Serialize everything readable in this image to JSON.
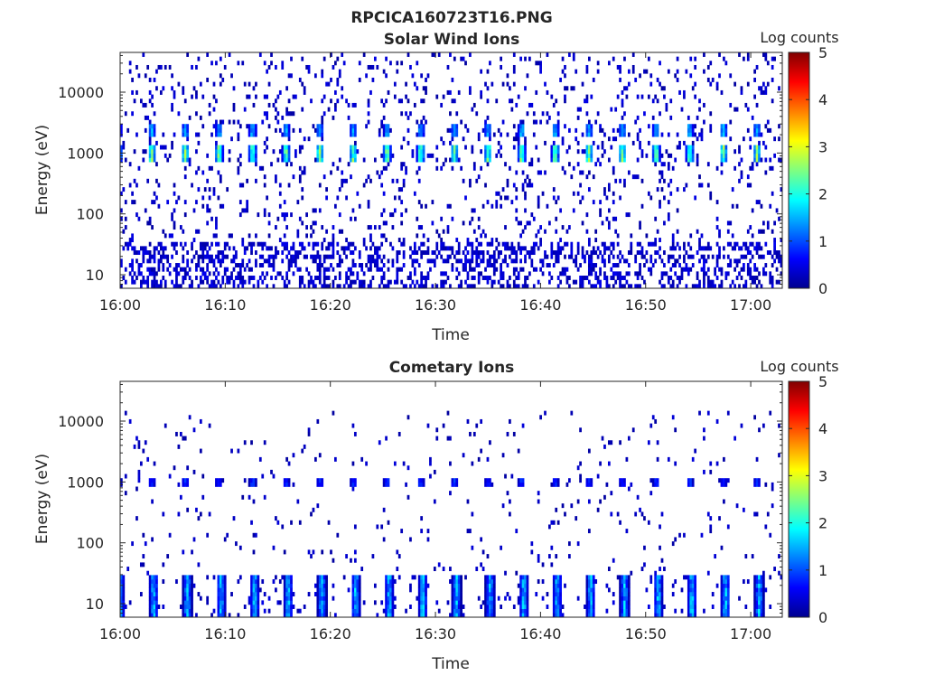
{
  "figure_title": "RPCICA160723T16.PNG",
  "chart_data": [
    {
      "type": "heatmap",
      "title": "Solar Wind Ions",
      "xlabel": "Time",
      "ylabel": "Energy (eV)",
      "xticks": [
        "16:00",
        "16:10",
        "16:20",
        "16:30",
        "16:40",
        "16:50",
        "17:00"
      ],
      "xlim": [
        "16:00",
        "17:03"
      ],
      "yscale": "log",
      "yticks": [
        10,
        100,
        1000,
        10000
      ],
      "ylim": [
        6,
        45000
      ],
      "colorbar": {
        "label": "Log counts",
        "ticks": [
          0,
          1,
          2,
          3,
          4,
          5
        ],
        "range": [
          0,
          5
        ],
        "colormap": "jet"
      },
      "features": {
        "main_beam": {
          "energy_eV": 1000,
          "peak_log_counts": 2.6,
          "cycle_minutes": 3.2,
          "first_minute": 3
        },
        "upper_harmonic": {
          "energy_eV": 2200,
          "peak_log_counts": 1.6
        },
        "background": {
          "energy_range_eV": [
            6,
            45000
          ],
          "typical_log_counts": 0.3
        },
        "low_energy_band": {
          "energy_range_eV": [
            6,
            35
          ],
          "typical_log_counts": 0.3
        }
      }
    },
    {
      "type": "heatmap",
      "title": "Cometary Ions",
      "xlabel": "Time",
      "ylabel": "Energy (eV)",
      "xticks": [
        "16:00",
        "16:10",
        "16:20",
        "16:30",
        "16:40",
        "16:50",
        "17:00"
      ],
      "xlim": [
        "16:00",
        "17:03"
      ],
      "yscale": "log",
      "yticks": [
        10,
        100,
        1000,
        10000
      ],
      "ylim": [
        6,
        45000
      ],
      "colorbar": {
        "label": "Log counts",
        "ticks": [
          0,
          1,
          2,
          3,
          4,
          5
        ],
        "range": [
          0,
          5
        ],
        "colormap": "jet"
      },
      "features": {
        "main_beam": {
          "energy_eV": 1000,
          "peak_log_counts": 1.0,
          "cycle_minutes": 3.2,
          "first_minute": 3
        },
        "low_energy_band": {
          "energy_range_eV": [
            6,
            30
          ],
          "peak_log_counts": 1.9,
          "cycle_minutes": 3.2,
          "first_minute": 0
        },
        "background": {
          "energy_range_eV": [
            30,
            45000
          ],
          "typical_log_counts": 0.2
        }
      }
    }
  ],
  "colors": {
    "axis": "#262626",
    "background": "#ffffff",
    "colormap_min": "#00008f",
    "colormap_max": "#800000"
  }
}
